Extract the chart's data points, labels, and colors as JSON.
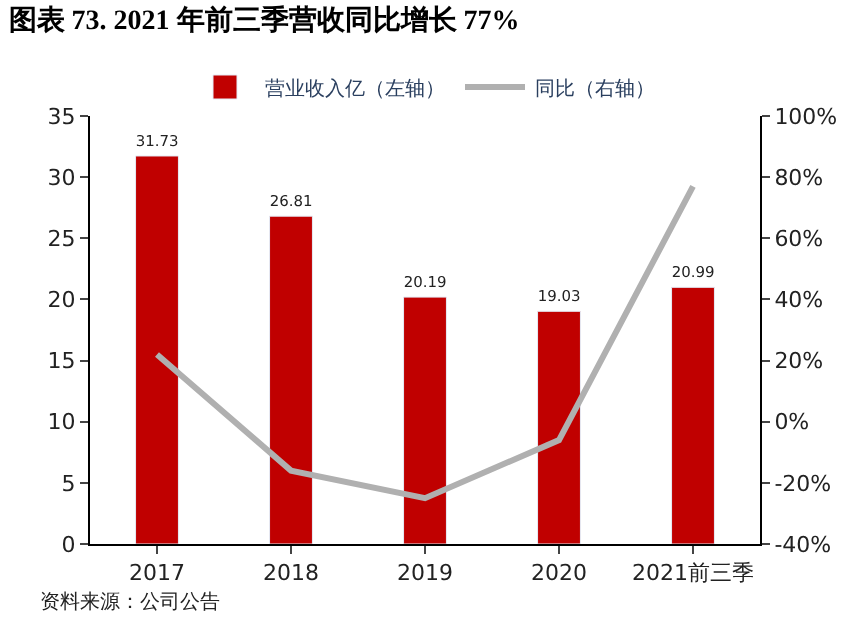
{
  "chart_data": {
    "type": "bar",
    "title": "图表 73. 2021 年前三季营收同比增长 77%",
    "categories": [
      "2017",
      "2018",
      "2019",
      "2020",
      "2021前三季"
    ],
    "series": [
      {
        "name": "营业收入亿（左轴）",
        "color": "#c00000",
        "values": [
          31.73,
          26.81,
          20.19,
          19.03,
          20.99
        ],
        "data_labels": true
      },
      {
        "name": "同比（右轴）",
        "type": "line",
        "axis": "y2",
        "color": "#b0b0b0",
        "values": [
          22,
          -16,
          -25,
          -6,
          77
        ]
      }
    ],
    "ylim": [
      0,
      35
    ],
    "yticks": [
      0,
      5,
      10,
      15,
      20,
      25,
      30,
      35
    ],
    "y2lim": [
      -40,
      100
    ],
    "y2ticks": [
      {
        "value": -40,
        "label": "-40%"
      },
      {
        "value": -20,
        "label": "-20%"
      },
      {
        "value": 0,
        "label": "0%"
      },
      {
        "value": 20,
        "label": "20%"
      },
      {
        "value": 40,
        "label": "40%"
      },
      {
        "value": 60,
        "label": "60%"
      },
      {
        "value": 80,
        "label": "80%"
      },
      {
        "value": 100,
        "label": "100%"
      }
    ],
    "legend": "top",
    "marker": "none",
    "line_style": "solid",
    "annotations": [
      "资料来源：公司公告"
    ]
  }
}
